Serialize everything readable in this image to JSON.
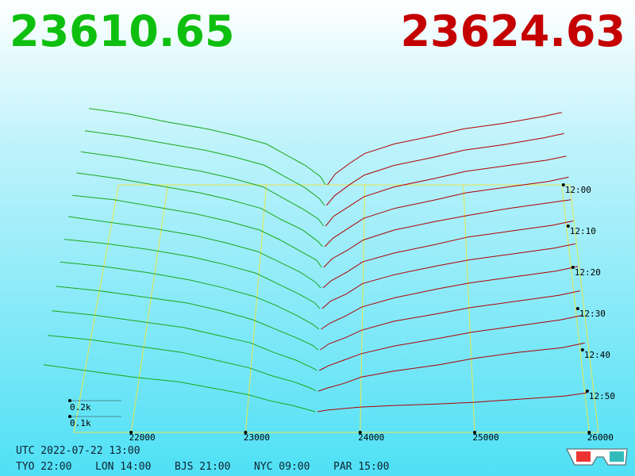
{
  "chart_data": {
    "type": "depth3d",
    "bid_price": "23610.65",
    "ask_price": "23624.63",
    "bid_color": "#1aa81a",
    "ask_color": "#b00000",
    "bid_prices": [
      23600,
      23550,
      23400,
      23200,
      23000,
      22700,
      22400,
      22000,
      21600,
      21200
    ],
    "ask_prices": [
      23620,
      23700,
      23850,
      24000,
      24300,
      24700,
      25000,
      25400,
      25800,
      26000
    ],
    "minutes": [
      0,
      5,
      10,
      15,
      20,
      25,
      30,
      35,
      40,
      45,
      50,
      55
    ],
    "bid_sizes": [
      [
        0,
        0.06,
        0.14,
        0.22,
        0.3,
        0.36,
        0.41,
        0.46,
        0.52,
        0.56
      ],
      [
        0,
        0.05,
        0.13,
        0.21,
        0.29,
        0.35,
        0.4,
        0.45,
        0.5,
        0.54
      ],
      [
        0,
        0.05,
        0.12,
        0.2,
        0.28,
        0.34,
        0.39,
        0.44,
        0.49,
        0.53
      ],
      [
        0,
        0.04,
        0.12,
        0.19,
        0.27,
        0.33,
        0.38,
        0.43,
        0.48,
        0.52
      ],
      [
        0,
        0.05,
        0.11,
        0.19,
        0.26,
        0.32,
        0.37,
        0.42,
        0.47,
        0.5
      ],
      [
        0,
        0.04,
        0.11,
        0.18,
        0.25,
        0.31,
        0.36,
        0.41,
        0.45,
        0.49
      ],
      [
        0,
        0.04,
        0.1,
        0.17,
        0.24,
        0.3,
        0.35,
        0.4,
        0.44,
        0.47
      ],
      [
        0,
        0.03,
        0.09,
        0.16,
        0.22,
        0.28,
        0.33,
        0.38,
        0.42,
        0.45
      ],
      [
        0,
        0.03,
        0.08,
        0.14,
        0.2,
        0.26,
        0.31,
        0.35,
        0.39,
        0.42
      ],
      [
        0,
        0.02,
        0.07,
        0.12,
        0.18,
        0.23,
        0.28,
        0.32,
        0.36,
        0.39
      ],
      [
        0,
        0.02,
        0.06,
        0.1,
        0.15,
        0.2,
        0.25,
        0.29,
        0.33,
        0.36
      ],
      [
        0,
        0.01,
        0.04,
        0.07,
        0.11,
        0.15,
        0.19,
        0.22,
        0.26,
        0.3
      ]
    ],
    "ask_sizes": [
      [
        0,
        0.08,
        0.16,
        0.23,
        0.3,
        0.36,
        0.41,
        0.45,
        0.5,
        0.53
      ],
      [
        0,
        0.07,
        0.15,
        0.22,
        0.29,
        0.35,
        0.4,
        0.44,
        0.49,
        0.52
      ],
      [
        0,
        0.07,
        0.14,
        0.21,
        0.28,
        0.34,
        0.39,
        0.43,
        0.47,
        0.5
      ],
      [
        0,
        0.06,
        0.13,
        0.2,
        0.27,
        0.33,
        0.38,
        0.42,
        0.46,
        0.49
      ],
      [
        0,
        0.06,
        0.12,
        0.19,
        0.26,
        0.32,
        0.36,
        0.41,
        0.45,
        0.47
      ],
      [
        0,
        0.05,
        0.11,
        0.18,
        0.24,
        0.3,
        0.35,
        0.39,
        0.43,
        0.46
      ],
      [
        0,
        0.05,
        0.1,
        0.17,
        0.23,
        0.29,
        0.33,
        0.37,
        0.41,
        0.44
      ],
      [
        0,
        0.04,
        0.09,
        0.15,
        0.21,
        0.27,
        0.31,
        0.35,
        0.39,
        0.42
      ],
      [
        0,
        0.04,
        0.08,
        0.13,
        0.19,
        0.24,
        0.28,
        0.32,
        0.36,
        0.39
      ],
      [
        0,
        0.03,
        0.07,
        0.11,
        0.16,
        0.21,
        0.25,
        0.29,
        0.33,
        0.36
      ],
      [
        0,
        0.02,
        0.05,
        0.09,
        0.13,
        0.17,
        0.21,
        0.25,
        0.28,
        0.31
      ],
      [
        0,
        0.01,
        0.02,
        0.03,
        0.04,
        0.05,
        0.06,
        0.08,
        0.1,
        0.12
      ]
    ],
    "xticks": [
      22000,
      23000,
      24000,
      25000,
      26000
    ],
    "tticks": [
      {
        "value": 0,
        "label": "12:00"
      },
      {
        "value": 10,
        "label": "12:10"
      },
      {
        "value": 20,
        "label": "12:20"
      },
      {
        "value": 30,
        "label": "12:30"
      },
      {
        "value": 40,
        "label": "12:40"
      },
      {
        "value": 50,
        "label": "12:50"
      }
    ],
    "vticks": [
      {
        "value": 0.1,
        "label": "0.1k"
      },
      {
        "value": 0.2,
        "label": "0.2k"
      }
    ],
    "utc": "UTC 2022-07-22 13:00",
    "clocks": [
      "TYO 22:00",
      "LON 14:00",
      "BJS 21:00",
      "NYC 09:00",
      "PAR 15:00"
    ]
  }
}
